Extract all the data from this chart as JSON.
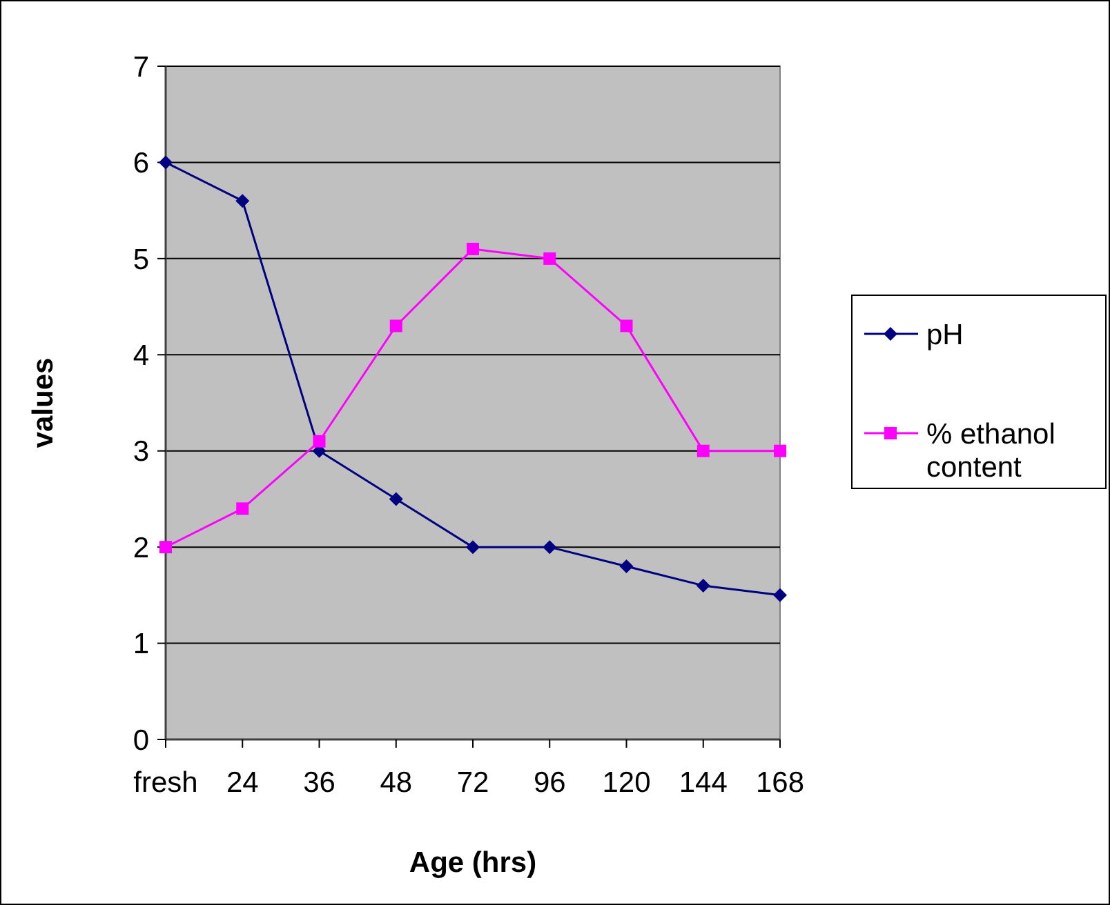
{
  "chart_data": {
    "type": "line",
    "xlabel": "Age (hrs)",
    "ylabel": "values",
    "categories": [
      "fresh",
      "24",
      "36",
      "48",
      "72",
      "96",
      "120",
      "144",
      "168"
    ],
    "series": [
      {
        "name": "pH",
        "color": "#000080",
        "marker": "diamond",
        "values": [
          6,
          5.6,
          3,
          2.5,
          2,
          2,
          1.8,
          1.6,
          1.5
        ]
      },
      {
        "name": "% ethanol content",
        "color": "#ff00ff",
        "marker": "square",
        "values": [
          2,
          2.4,
          3.1,
          4.3,
          5.1,
          5,
          4.3,
          3,
          3
        ]
      }
    ],
    "ylim": [
      0,
      7
    ],
    "yticks": [
      0,
      1,
      2,
      3,
      4,
      5,
      6,
      7
    ],
    "grid": "y",
    "legend": "right"
  }
}
